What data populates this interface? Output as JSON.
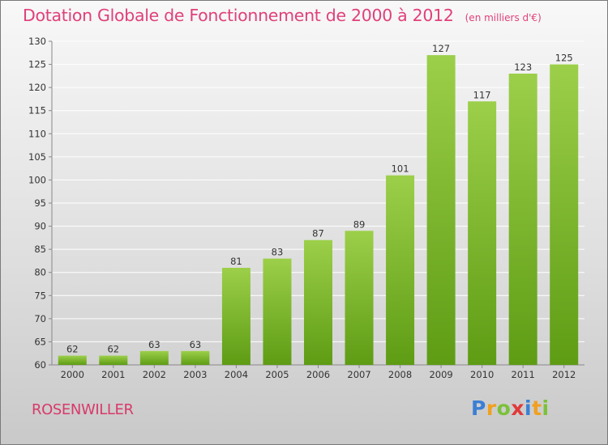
{
  "chart_data": {
    "type": "bar",
    "title": "Dotation Globale de Fonctionnement de 2000 à 2012",
    "subtitle": "(en milliers d'€)",
    "categories": [
      "2000",
      "2001",
      "2002",
      "2003",
      "2004",
      "2005",
      "2006",
      "2007",
      "2008",
      "2009",
      "2010",
      "2011",
      "2012"
    ],
    "values": [
      62,
      62,
      63,
      63,
      81,
      83,
      87,
      89,
      101,
      127,
      117,
      123,
      125
    ],
    "ylim": [
      60,
      130
    ],
    "yticks": [
      60,
      65,
      70,
      75,
      80,
      85,
      90,
      95,
      100,
      105,
      110,
      115,
      120,
      125,
      130
    ],
    "grid": true,
    "xlabel": "",
    "ylabel": ""
  },
  "commune": "ROSENWILLER",
  "brand": {
    "name": "Proxiti",
    "letters": [
      {
        "ch": "P",
        "color": "#3a7fd5"
      },
      {
        "ch": "r",
        "color": "#f0a020"
      },
      {
        "ch": "o",
        "color": "#7bc13a"
      },
      {
        "ch": "x",
        "color": "#e03a3a"
      },
      {
        "ch": "i",
        "color": "#3a7fd5"
      },
      {
        "ch": "t",
        "color": "#f0a020"
      },
      {
        "ch": "i",
        "color": "#7bc13a"
      }
    ]
  },
  "colors": {
    "title": "#e0407a",
    "bar_top": "#9ccf4a",
    "bar_bottom": "#5e9c14",
    "grid": "#ffffff",
    "axis": "#888888"
  }
}
